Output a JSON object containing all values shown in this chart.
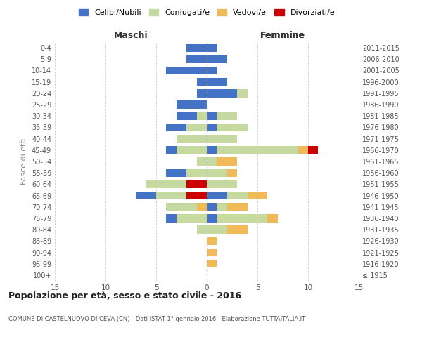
{
  "age_groups": [
    "100+",
    "95-99",
    "90-94",
    "85-89",
    "80-84",
    "75-79",
    "70-74",
    "65-69",
    "60-64",
    "55-59",
    "50-54",
    "45-49",
    "40-44",
    "35-39",
    "30-34",
    "25-29",
    "20-24",
    "15-19",
    "10-14",
    "5-9",
    "0-4"
  ],
  "birth_years": [
    "≤ 1915",
    "1916-1920",
    "1921-1925",
    "1926-1930",
    "1931-1935",
    "1936-1940",
    "1941-1945",
    "1946-1950",
    "1951-1955",
    "1956-1960",
    "1961-1965",
    "1966-1970",
    "1971-1975",
    "1976-1980",
    "1981-1985",
    "1986-1990",
    "1991-1995",
    "1996-2000",
    "2001-2005",
    "2006-2010",
    "2011-2015"
  ],
  "colors": {
    "celibi": "#4472C4",
    "coniugati": "#C5D9A0",
    "vedovi": "#F0B95A",
    "divorziati": "#CC0000"
  },
  "males": {
    "celibi": [
      0,
      0,
      0,
      0,
      0,
      1,
      0,
      2,
      0,
      2,
      0,
      1,
      0,
      2,
      2,
      3,
      1,
      1,
      4,
      2,
      2
    ],
    "coniugati": [
      0,
      0,
      0,
      0,
      1,
      3,
      3,
      3,
      4,
      2,
      1,
      3,
      3,
      2,
      1,
      0,
      0,
      0,
      0,
      0,
      0
    ],
    "vedovi": [
      0,
      0,
      0,
      0,
      0,
      0,
      1,
      0,
      0,
      0,
      0,
      0,
      0,
      0,
      0,
      0,
      0,
      0,
      0,
      0,
      0
    ],
    "divorziati": [
      0,
      0,
      0,
      0,
      0,
      0,
      0,
      2,
      2,
      0,
      0,
      0,
      0,
      0,
      0,
      0,
      0,
      0,
      0,
      0,
      0
    ]
  },
  "females": {
    "celibi": [
      0,
      0,
      0,
      0,
      0,
      1,
      1,
      2,
      0,
      0,
      0,
      1,
      0,
      1,
      1,
      0,
      3,
      2,
      1,
      2,
      1
    ],
    "coniugati": [
      0,
      0,
      0,
      0,
      2,
      5,
      1,
      2,
      3,
      2,
      1,
      8,
      3,
      3,
      2,
      0,
      1,
      0,
      0,
      0,
      0
    ],
    "vedovi": [
      0,
      1,
      1,
      1,
      2,
      1,
      2,
      2,
      0,
      1,
      2,
      1,
      0,
      0,
      0,
      0,
      0,
      0,
      0,
      0,
      0
    ],
    "divorziati": [
      0,
      0,
      0,
      0,
      0,
      0,
      0,
      0,
      0,
      0,
      0,
      1,
      0,
      0,
      0,
      0,
      0,
      0,
      0,
      0,
      0
    ]
  },
  "title": "Popolazione per età, sesso e stato civile - 2016",
  "subtitle": "COMUNE DI CASTELNUOVO DI CEVA (CN) - Dati ISTAT 1° gennaio 2016 - Elaborazione TUTTAITALIA.IT",
  "ylabel_left": "Fasce di età",
  "xlabel_left": "Maschi",
  "xlabel_right": "Femmine",
  "xlim": 15,
  "legend_labels": [
    "Celibi/Nubili",
    "Coniugati/e",
    "Vedovi/e",
    "Divorziati/e"
  ],
  "background_color": "#ffffff",
  "grid_color": "#cccccc"
}
